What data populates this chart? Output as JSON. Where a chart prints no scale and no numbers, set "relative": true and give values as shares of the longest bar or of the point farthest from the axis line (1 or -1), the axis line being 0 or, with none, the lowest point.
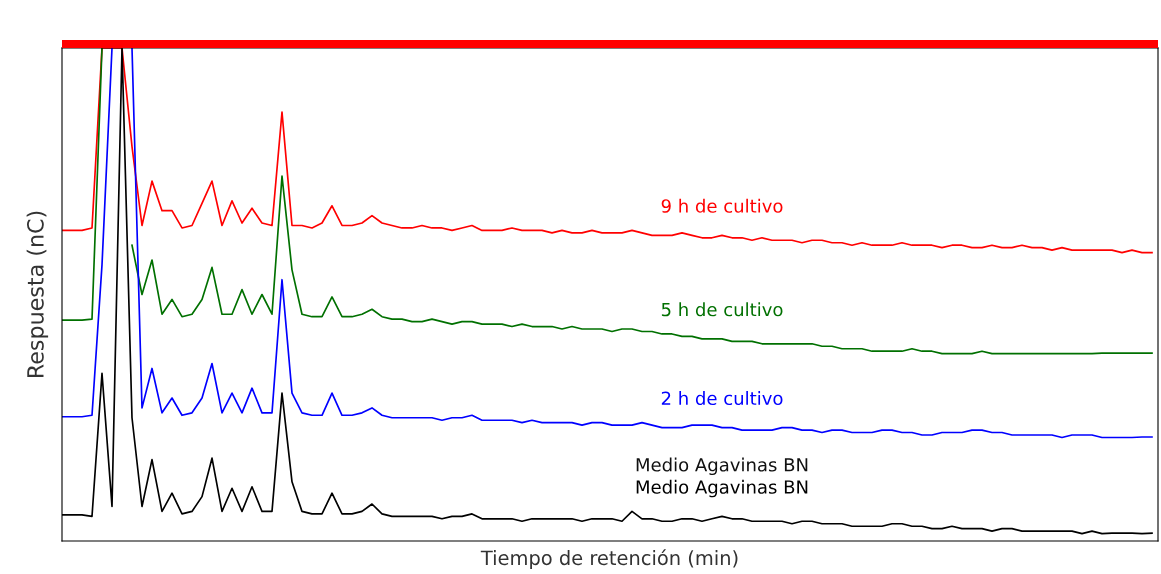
{
  "chart_data": {
    "type": "line",
    "relative": true,
    "xlabel": "Tiempo de retención (min)",
    "ylabel": "Respuesta (nC)",
    "legend": false,
    "marker": "none",
    "line_style": "solid",
    "categories": [
      null,
      null,
      null,
      null,
      null,
      null,
      null,
      null,
      null,
      null,
      null,
      null,
      null,
      null,
      null,
      null,
      null,
      null,
      null,
      null,
      null,
      null,
      null,
      null,
      null,
      null,
      null,
      null,
      null,
      null,
      null,
      null,
      null,
      null,
      null,
      null,
      null,
      null,
      null,
      null,
      null,
      null,
      null,
      null,
      null,
      null,
      null,
      null,
      null,
      null,
      null,
      null,
      null,
      null,
      null,
      null,
      null,
      null,
      null,
      null,
      null,
      null,
      null,
      null,
      null,
      null,
      null,
      null,
      null,
      null,
      null,
      null,
      null,
      null,
      null,
      null,
      null,
      null,
      null,
      null,
      null,
      null,
      null,
      null,
      null,
      null,
      null,
      null,
      null,
      null,
      null,
      null,
      null,
      null,
      null,
      null,
      null,
      null,
      null,
      null,
      null,
      null,
      null,
      null,
      null,
      null,
      null,
      null,
      null,
      null
    ],
    "series": [
      {
        "name": "9 h de cultivo",
        "color": "#ff0000",
        "values": [
          0.63,
          0.63,
          0.63,
          0.635,
          1,
          1,
          1,
          0.8,
          0.64,
          0.73,
          0.67,
          0.67,
          0.635,
          0.64,
          0.685,
          0.73,
          0.64,
          0.69,
          0.645,
          0.675,
          0.645,
          0.64,
          0.87,
          0.64,
          0.64,
          0.635,
          0.645,
          0.68,
          0.64,
          0.64,
          0.645,
          0.66,
          0.645,
          0.64,
          0.635,
          0.635,
          0.64,
          0.635,
          0.635,
          0.63,
          0.635,
          0.64,
          0.63,
          0.63,
          0.63,
          0.635,
          0.63,
          0.63,
          0.63,
          0.625,
          0.63,
          0.625,
          0.625,
          0.63,
          0.625,
          0.625,
          0.625,
          0.63,
          0.625,
          0.62,
          0.62,
          0.62,
          0.625,
          0.62,
          0.615,
          0.615,
          0.62,
          0.615,
          0.615,
          0.61,
          0.615,
          0.61,
          0.61,
          0.61,
          0.605,
          0.61,
          0.61,
          0.605,
          0.605,
          0.6,
          0.605,
          0.6,
          0.6,
          0.6,
          0.605,
          0.6,
          0.6,
          0.6,
          0.595,
          0.6,
          0.6,
          0.595,
          0.595,
          0.6,
          0.595,
          0.595,
          0.6,
          0.595,
          0.595,
          0.59,
          0.595,
          0.59,
          0.59,
          0.59,
          0.59,
          0.59,
          0.585,
          0.59,
          0.585,
          0.585
        ]
      },
      {
        "name": "5 h de cultivo",
        "color": "#007000",
        "values": [
          0.448,
          0.448,
          0.448,
          0.45,
          1,
          null,
          null,
          0.6,
          0.5,
          0.57,
          0.46,
          0.49,
          0.455,
          0.46,
          0.49,
          0.555,
          0.46,
          0.46,
          0.51,
          0.46,
          0.5,
          0.46,
          0.74,
          0.55,
          0.46,
          0.455,
          0.455,
          0.495,
          0.455,
          0.455,
          0.46,
          0.47,
          0.455,
          0.45,
          0.45,
          0.445,
          0.445,
          0.45,
          0.445,
          0.44,
          0.445,
          0.445,
          0.44,
          0.44,
          0.44,
          0.435,
          0.44,
          0.435,
          0.435,
          0.435,
          0.43,
          0.435,
          0.43,
          0.43,
          0.43,
          0.425,
          0.43,
          0.43,
          0.425,
          0.425,
          0.42,
          0.42,
          0.415,
          0.415,
          0.41,
          0.41,
          0.41,
          0.405,
          0.405,
          0.405,
          0.4,
          0.4,
          0.4,
          0.4,
          0.4,
          0.4,
          0.395,
          0.395,
          0.39,
          0.39,
          0.39,
          0.385,
          0.385,
          0.385,
          0.385,
          0.39,
          0.385,
          0.385,
          0.38,
          0.38,
          0.38,
          0.38,
          0.385,
          0.38,
          0.38,
          0.38,
          0.38,
          0.38,
          0.38,
          0.38,
          0.38,
          0.38,
          0.38,
          0.38,
          0.381,
          0.381,
          0.381,
          0.381,
          0.381,
          0.381
        ]
      },
      {
        "name": "2 h de cultivo",
        "color": "#0000ff",
        "values": [
          0.252,
          0.252,
          0.252,
          0.255,
          0.56,
          1,
          null,
          1,
          0.27,
          0.35,
          0.26,
          0.29,
          0.255,
          0.26,
          0.29,
          0.36,
          0.26,
          0.3,
          0.26,
          0.31,
          0.26,
          0.26,
          0.53,
          0.3,
          0.26,
          0.255,
          0.255,
          0.3,
          0.255,
          0.255,
          0.26,
          0.27,
          0.255,
          0.25,
          0.25,
          0.25,
          0.25,
          0.25,
          0.245,
          0.25,
          0.25,
          0.255,
          0.245,
          0.245,
          0.245,
          0.245,
          0.24,
          0.245,
          0.24,
          0.24,
          0.24,
          0.24,
          0.235,
          0.24,
          0.24,
          0.235,
          0.235,
          0.235,
          0.24,
          0.235,
          0.23,
          0.23,
          0.23,
          0.235,
          0.235,
          0.235,
          0.23,
          0.23,
          0.225,
          0.225,
          0.225,
          0.225,
          0.23,
          0.23,
          0.225,
          0.225,
          0.22,
          0.225,
          0.225,
          0.22,
          0.22,
          0.22,
          0.225,
          0.225,
          0.22,
          0.22,
          0.215,
          0.215,
          0.22,
          0.22,
          0.22,
          0.225,
          0.225,
          0.22,
          0.22,
          0.215,
          0.215,
          0.215,
          0.215,
          0.215,
          0.21,
          0.215,
          0.215,
          0.215,
          0.21,
          0.21,
          0.21,
          0.21,
          0.211,
          0.211
        ]
      },
      {
        "name": "Medio Agavinas BN",
        "color": "#000000",
        "values": [
          0.053,
          0.053,
          0.053,
          0.05,
          0.34,
          0.07,
          1,
          0.25,
          0.07,
          0.165,
          0.06,
          0.097,
          0.055,
          0.06,
          0.09,
          0.168,
          0.06,
          0.107,
          0.06,
          0.11,
          0.06,
          0.06,
          0.3,
          0.12,
          0.06,
          0.055,
          0.055,
          0.097,
          0.055,
          0.055,
          0.06,
          0.075,
          0.055,
          0.05,
          0.05,
          0.05,
          0.05,
          0.05,
          0.045,
          0.05,
          0.05,
          0.055,
          0.045,
          0.045,
          0.045,
          0.045,
          0.04,
          0.045,
          0.045,
          0.045,
          0.045,
          0.045,
          0.04,
          0.045,
          0.045,
          0.045,
          0.04,
          0.06,
          0.045,
          0.045,
          0.04,
          0.04,
          0.045,
          0.045,
          0.04,
          0.045,
          0.05,
          0.045,
          0.045,
          0.04,
          0.04,
          0.04,
          0.04,
          0.035,
          0.04,
          0.04,
          0.035,
          0.035,
          0.035,
          0.03,
          0.03,
          0.03,
          0.03,
          0.035,
          0.035,
          0.03,
          0.03,
          0.025,
          0.025,
          0.03,
          0.025,
          0.025,
          0.025,
          0.02,
          0.025,
          0.025,
          0.02,
          0.02,
          0.02,
          0.02,
          0.02,
          0.02,
          0.015,
          0.02,
          0.015,
          0.016,
          0.016,
          0.016,
          0.015,
          0.016
        ]
      }
    ],
    "annotations": [
      "Medio Agavinas BN"
    ]
  }
}
